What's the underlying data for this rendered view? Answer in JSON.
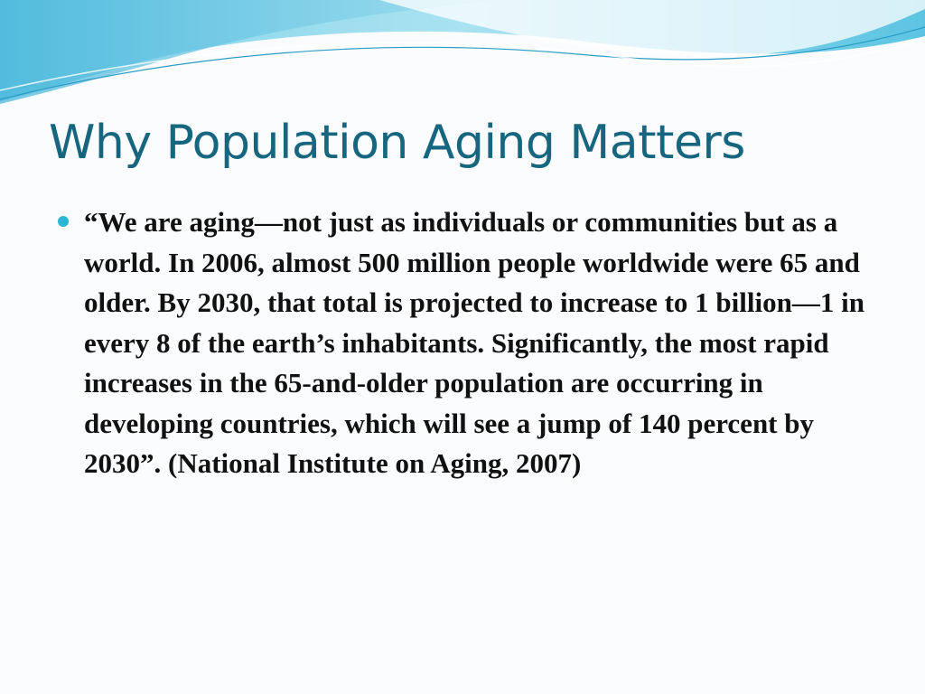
{
  "slide": {
    "title": "Why Population Aging Matters",
    "bullets": [
      "“We are aging—not just as individuals or communities but as a world. In 2006, almost 500 million people worldwide were 65 and older. By 2030, that total is projected to increase to 1 billion—1 in every 8 of the earth’s inhabitants. Significantly, the most rapid increases in the 65-and-older population are occurring in developing countries, which will see a jump of 140 percent by 2030”. (National Institute on Aging, 2007)"
    ]
  }
}
